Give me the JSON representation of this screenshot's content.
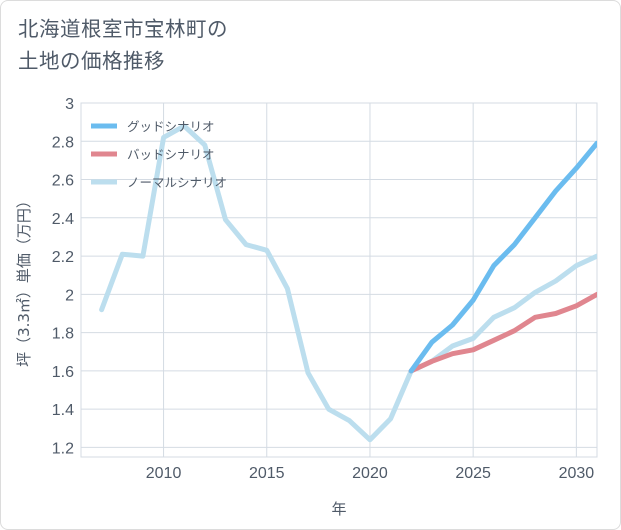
{
  "header": {
    "title_line1": "北海道根室市宝林町の",
    "title_line2": "土地の価格推移"
  },
  "chart_data": {
    "type": "line",
    "title": "北海道根室市宝林町の土地の価格推移",
    "xlabel": "年",
    "ylabel": "坪（3.3㎡）単価（万円）",
    "xlim": [
      2006,
      2031
    ],
    "ylim": [
      1.15,
      3.0
    ],
    "x_ticks": [
      2010,
      2015,
      2020,
      2025,
      2030
    ],
    "y_ticks": [
      1.2,
      1.4,
      1.6,
      1.8,
      2,
      2.2,
      2.4,
      2.6,
      2.8,
      3
    ],
    "y_tick_labels": [
      "1.2",
      "1.4",
      "1.6",
      "1.8",
      "2",
      "2.2",
      "2.4",
      "2.6",
      "2.8",
      "3"
    ],
    "grid": true,
    "legend_position": "top-left",
    "series": [
      {
        "name": "グッドシナリオ",
        "color": "#6bbcef",
        "x": [
          2022,
          2023,
          2024,
          2025,
          2026,
          2027,
          2028,
          2029,
          2030,
          2031
        ],
        "y": [
          1.6,
          1.75,
          1.84,
          1.97,
          2.15,
          2.26,
          2.4,
          2.54,
          2.66,
          2.79
        ]
      },
      {
        "name": "バッドシナリオ",
        "color": "#e0868f",
        "x": [
          2022,
          2023,
          2024,
          2025,
          2026,
          2027,
          2028,
          2029,
          2030,
          2031
        ],
        "y": [
          1.6,
          1.65,
          1.69,
          1.71,
          1.76,
          1.81,
          1.88,
          1.9,
          1.94,
          2.0
        ]
      },
      {
        "name": "ノーマルシナリオ",
        "color": "#bcdeee",
        "x": [
          2007,
          2008,
          2009,
          2010,
          2011,
          2012,
          2013,
          2014,
          2015,
          2016,
          2017,
          2018,
          2019,
          2020,
          2021,
          2022,
          2023,
          2024,
          2025,
          2026,
          2027,
          2028,
          2029,
          2030,
          2031
        ],
        "y": [
          1.92,
          2.21,
          2.2,
          2.82,
          2.88,
          2.78,
          2.39,
          2.26,
          2.23,
          2.03,
          1.59,
          1.4,
          1.34,
          1.24,
          1.35,
          1.6,
          1.65,
          1.73,
          1.77,
          1.88,
          1.93,
          2.01,
          2.07,
          2.15,
          2.2
        ]
      }
    ]
  }
}
